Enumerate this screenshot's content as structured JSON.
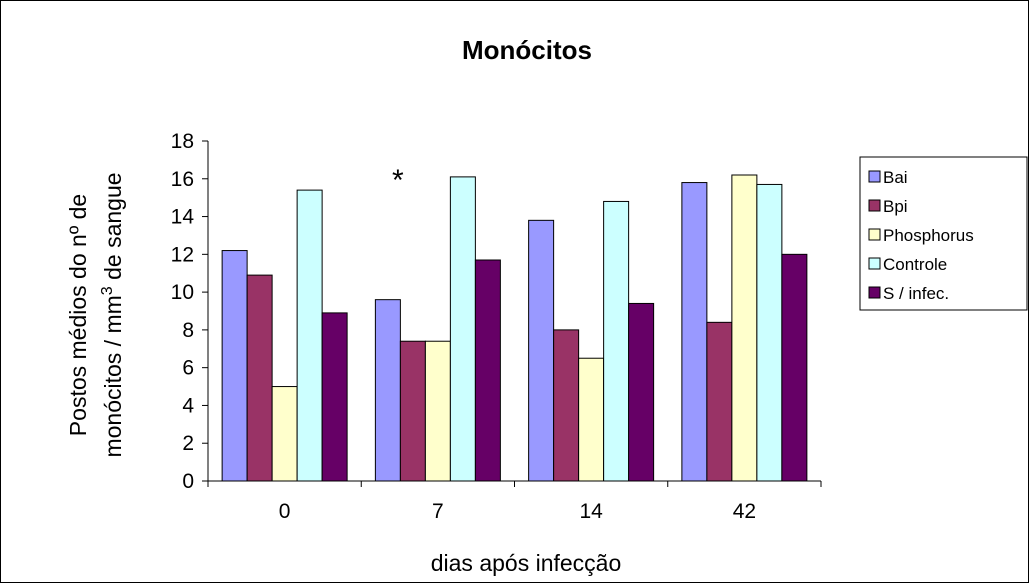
{
  "chart_data": {
    "type": "bar",
    "title": "Monócitos",
    "xlabel": "dias após infecção",
    "ylabel_line1": "Postos médios do nº de",
    "ylabel_line2_pre": "monócitos / mm",
    "ylabel_line2_sup": "3",
    "ylabel_line2_post": " de sangue",
    "categories": [
      "0",
      "7",
      "14",
      "42"
    ],
    "ylim": [
      0,
      18
    ],
    "yticks": [
      0,
      2,
      4,
      6,
      8,
      10,
      12,
      14,
      16,
      18
    ],
    "grid": false,
    "legend_position": "right",
    "series": [
      {
        "name": "Bai",
        "color": "#9999ff",
        "values": [
          12.2,
          9.6,
          13.8,
          15.8
        ]
      },
      {
        "name": "Bpi",
        "color": "#993366",
        "values": [
          10.9,
          7.4,
          8.0,
          8.4
        ]
      },
      {
        "name": "Phosphorus",
        "color": "#ffffcc",
        "values": [
          5.0,
          7.4,
          6.5,
          16.2
        ]
      },
      {
        "name": "Controle",
        "color": "#ccffff",
        "values": [
          15.4,
          16.1,
          14.8,
          15.7
        ]
      },
      {
        "name": "S / infec.",
        "color": "#660066",
        "values": [
          8.9,
          11.7,
          9.4,
          12.0
        ]
      }
    ],
    "annotations": [
      {
        "text": "*",
        "category": "7"
      }
    ]
  }
}
